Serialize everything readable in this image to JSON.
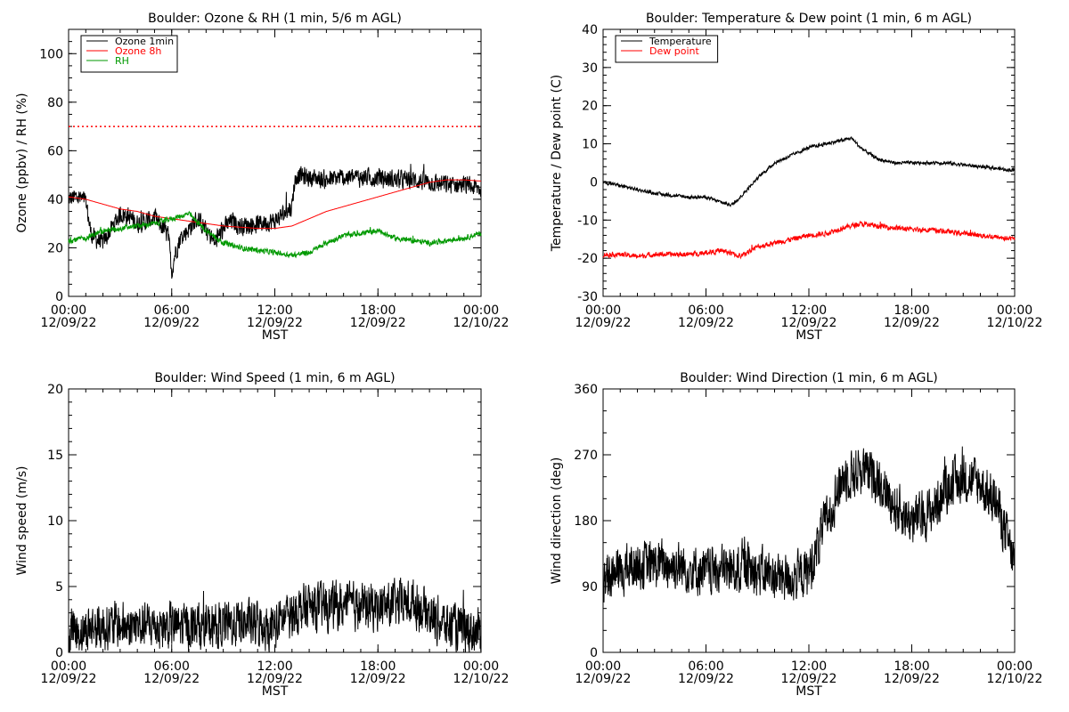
{
  "chart_data": [
    {
      "type": "line",
      "title": "Boulder: Ozone & RH (1 min, 5/6 m AGL)",
      "xlabel": "MST",
      "ylabel": "Ozone (ppbv) / RH (%)",
      "ylim": [
        0,
        110
      ],
      "yticks": [
        0,
        20,
        40,
        60,
        80,
        100
      ],
      "xticks": [
        [
          "00:00",
          "12/09/22"
        ],
        [
          "06:00",
          "12/09/22"
        ],
        [
          "12:00",
          "12/09/22"
        ],
        [
          "18:00",
          "12/09/22"
        ],
        [
          "00:00",
          "12/10/22"
        ]
      ],
      "x_hours": [
        0,
        24
      ],
      "grid": false,
      "legend_position": "top-left",
      "reference_line": {
        "y": 70,
        "style": "dotted",
        "color": "#ff0000"
      },
      "series": [
        {
          "name": "Ozone 1min",
          "color": "#000000",
          "noise": 3.5,
          "x": [
            0,
            0.5,
            1,
            1.3,
            1.5,
            2,
            2.5,
            3,
            3.5,
            4,
            4.5,
            5,
            5.5,
            5.8,
            6,
            6.2,
            6.5,
            7,
            7.5,
            8,
            8.5,
            9,
            9.5,
            10,
            11,
            12,
            12.5,
            13,
            13.1,
            13.3,
            14,
            15,
            16,
            17,
            18,
            19,
            20,
            21,
            22,
            23,
            24
          ],
          "y": [
            40,
            41,
            39,
            26,
            24,
            22,
            28,
            34,
            33,
            30,
            31,
            32,
            28,
            25,
            10,
            18,
            24,
            28,
            32,
            27,
            22,
            28,
            31,
            29,
            30,
            31,
            34,
            37,
            45,
            50,
            49,
            48,
            49,
            49,
            49,
            48,
            48,
            47,
            46,
            46,
            44
          ]
        },
        {
          "name": "Ozone 8h",
          "color": "#ff0000",
          "noise": 0,
          "x": [
            0,
            1,
            2,
            3,
            4,
            5,
            6,
            7,
            8,
            9,
            10,
            11,
            12,
            13,
            14,
            15,
            16,
            17,
            18,
            19,
            20,
            21,
            22,
            23,
            24
          ],
          "y": [
            41,
            40,
            38,
            36,
            35,
            33,
            32,
            31,
            30,
            29,
            28.5,
            28,
            28,
            29,
            32,
            35,
            37,
            39,
            41,
            43,
            45,
            47,
            48,
            48,
            47.5
          ]
        },
        {
          "name": "RH",
          "color": "#009900",
          "noise": 1,
          "x": [
            0,
            1,
            2,
            3,
            4,
            5,
            6,
            7,
            8,
            9,
            10,
            11,
            12,
            13,
            14,
            15,
            16,
            17,
            18,
            19,
            20,
            21,
            22,
            23,
            24
          ],
          "y": [
            23,
            24,
            27,
            28,
            29,
            30,
            32,
            34,
            27,
            22,
            20,
            19,
            18,
            17,
            18,
            22,
            25,
            26,
            27,
            24,
            23,
            22,
            23,
            24,
            26
          ]
        }
      ]
    },
    {
      "type": "line",
      "title": "Boulder: Temperature & Dew point (1 min, 6 m AGL)",
      "xlabel": "MST",
      "ylabel": "Temperature / Dew point (C)",
      "ylim": [
        -30,
        40
      ],
      "yticks": [
        -30,
        -20,
        -10,
        0,
        10,
        20,
        30,
        40
      ],
      "xticks": [
        [
          "00:00",
          "12/09/22"
        ],
        [
          "06:00",
          "12/09/22"
        ],
        [
          "12:00",
          "12/09/22"
        ],
        [
          "18:00",
          "12/09/22"
        ],
        [
          "00:00",
          "12/10/22"
        ]
      ],
      "x_hours": [
        0,
        24
      ],
      "grid": false,
      "legend_position": "top-left",
      "series": [
        {
          "name": "Temperature",
          "color": "#000000",
          "noise": 0.4,
          "x": [
            0,
            1,
            2,
            3,
            4,
            5,
            6,
            7,
            7.5,
            8,
            9,
            10,
            11,
            12,
            13,
            14,
            14.5,
            15,
            16,
            17,
            18,
            19,
            20,
            21,
            22,
            23,
            24
          ],
          "y": [
            0,
            -1,
            -2,
            -3,
            -3.5,
            -4,
            -4,
            -5.5,
            -6,
            -4,
            1,
            5,
            7,
            9,
            10,
            11,
            11.5,
            9,
            6,
            5,
            5,
            5,
            5,
            4.5,
            4,
            3.5,
            3
          ]
        },
        {
          "name": "Dew point",
          "color": "#ff0000",
          "noise": 0.6,
          "x": [
            0,
            1,
            2,
            3,
            4,
            5,
            6,
            7,
            8,
            9,
            10,
            11,
            12,
            13,
            14,
            15,
            16,
            17,
            18,
            19,
            20,
            21,
            22,
            23,
            24
          ],
          "y": [
            -19,
            -19,
            -19.5,
            -19,
            -19,
            -19,
            -18.5,
            -18,
            -19.5,
            -17,
            -16,
            -15,
            -14,
            -13.5,
            -12,
            -11,
            -11.5,
            -12,
            -12.5,
            -12.5,
            -13,
            -13.5,
            -14,
            -14.5,
            -15
          ]
        }
      ]
    },
    {
      "type": "line",
      "title": "Boulder: Wind Speed (1 min, 6 m AGL)",
      "xlabel": "MST",
      "ylabel": "Wind speed (m/s)",
      "ylim": [
        0,
        20
      ],
      "yticks": [
        0,
        5,
        10,
        15,
        20
      ],
      "xticks": [
        [
          "00:00",
          "12/09/22"
        ],
        [
          "06:00",
          "12/09/22"
        ],
        [
          "12:00",
          "12/09/22"
        ],
        [
          "18:00",
          "12/09/22"
        ],
        [
          "00:00",
          "12/10/22"
        ]
      ],
      "x_hours": [
        0,
        24
      ],
      "grid": false,
      "series": [
        {
          "name": "",
          "color": "#000000",
          "noise": 1.6,
          "floor": 0,
          "x": [
            0,
            2,
            4,
            6,
            8,
            10,
            12,
            13,
            14,
            16,
            18,
            20,
            22,
            24
          ],
          "y": [
            1.5,
            2,
            2,
            2,
            2,
            2.2,
            2,
            3,
            3.5,
            3.5,
            3.5,
            3.8,
            2,
            1.5
          ]
        }
      ]
    },
    {
      "type": "line",
      "title": "Boulder: Wind Direction (1 min, 6 m AGL)",
      "xlabel": "MST",
      "ylabel": "Wind direction (deg)",
      "ylim": [
        0,
        360
      ],
      "yticks": [
        0,
        90,
        180,
        270,
        360
      ],
      "xticks": [
        [
          "00:00",
          "12/09/22"
        ],
        [
          "06:00",
          "12/09/22"
        ],
        [
          "12:00",
          "12/09/22"
        ],
        [
          "18:00",
          "12/09/22"
        ],
        [
          "00:00",
          "12/10/22"
        ]
      ],
      "x_hours": [
        0,
        24
      ],
      "grid": false,
      "series": [
        {
          "name": "",
          "color": "#000000",
          "noise": 30,
          "floor": 30,
          "x": [
            0,
            2,
            4,
            6,
            8,
            10,
            11,
            12,
            13,
            14,
            15,
            16,
            17,
            18,
            19,
            20,
            21,
            22,
            23,
            24
          ],
          "y": [
            100,
            120,
            120,
            110,
            115,
            105,
            100,
            110,
            180,
            240,
            250,
            240,
            200,
            180,
            190,
            220,
            240,
            230,
            200,
            120
          ]
        }
      ]
    }
  ]
}
